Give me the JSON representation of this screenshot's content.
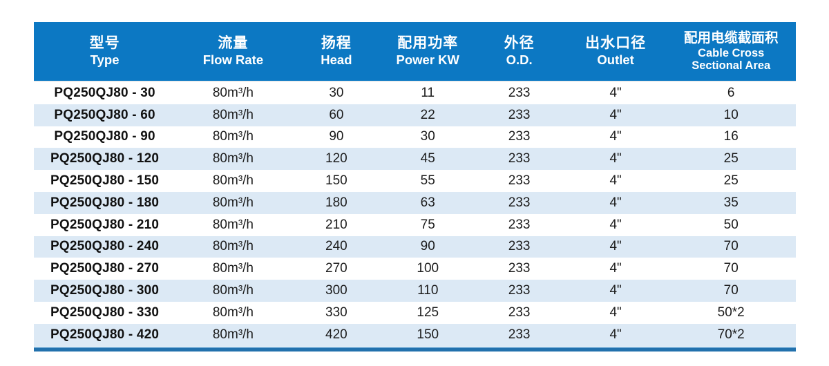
{
  "table": {
    "columns": [
      {
        "id": "type",
        "zh": "型号",
        "en": "Type"
      },
      {
        "id": "flow_rate",
        "zh": "流量",
        "en": "Flow Rate"
      },
      {
        "id": "head",
        "zh": "扬程",
        "en": "Head"
      },
      {
        "id": "power",
        "zh": "配用功率",
        "en": "Power KW"
      },
      {
        "id": "od",
        "zh": "外径",
        "en": "O.D."
      },
      {
        "id": "outlet",
        "zh": "出水口径",
        "en": "Outlet"
      },
      {
        "id": "cable",
        "zh": "配用电缆截面积",
        "en": "Cable Cross\nSectional Area"
      }
    ],
    "rows": [
      [
        "PQ250QJ80 - 30",
        "80m³/h",
        "30",
        "11",
        "233",
        "4\"",
        "6"
      ],
      [
        "PQ250QJ80 - 60",
        "80m³/h",
        "60",
        "22",
        "233",
        "4\"",
        "10"
      ],
      [
        "PQ250QJ80 - 90",
        "80m³/h",
        "90",
        "30",
        "233",
        "4\"",
        "16"
      ],
      [
        "PQ250QJ80 - 120",
        "80m³/h",
        "120",
        "45",
        "233",
        "4\"",
        "25"
      ],
      [
        "PQ250QJ80 - 150",
        "80m³/h",
        "150",
        "55",
        "233",
        "4\"",
        "25"
      ],
      [
        "PQ250QJ80 - 180",
        "80m³/h",
        "180",
        "63",
        "233",
        "4\"",
        "35"
      ],
      [
        "PQ250QJ80 - 210",
        "80m³/h",
        "210",
        "75",
        "233",
        "4\"",
        "50"
      ],
      [
        "PQ250QJ80 - 240",
        "80m³/h",
        "240",
        "90",
        "233",
        "4\"",
        "70"
      ],
      [
        "PQ250QJ80 - 270",
        "80m³/h",
        "270",
        "100",
        "233",
        "4\"",
        "70"
      ],
      [
        "PQ250QJ80 - 300",
        "80m³/h",
        "300",
        "110",
        "233",
        "4\"",
        "70"
      ],
      [
        "PQ250QJ80 - 330",
        "80m³/h",
        "330",
        "125",
        "233",
        "4\"",
        "50*2"
      ],
      [
        "PQ250QJ80 - 420",
        "80m³/h",
        "420",
        "150",
        "233",
        "4\"",
        "70*2"
      ]
    ]
  },
  "colors": {
    "header_bg": "#0c78c3",
    "row_alt_bg": "#dce9f5",
    "accent_dark": "#2271ad",
    "accent_light": "#7fb2d9",
    "header_text": "#ffffff",
    "body_text": "#1c1c1c"
  }
}
